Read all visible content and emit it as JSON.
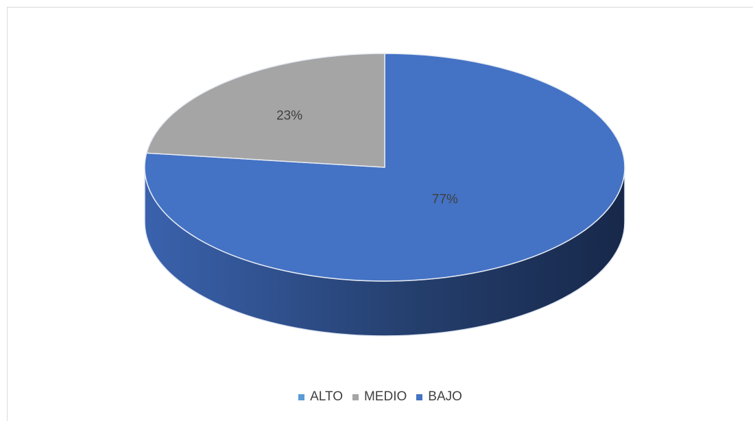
{
  "chart_data": {
    "type": "pie",
    "three_d": true,
    "categories": [
      "ALTO",
      "MEDIO",
      "BAJO"
    ],
    "values": [
      77,
      23,
      0
    ],
    "data_labels": [
      "77%",
      "23%",
      ""
    ],
    "colors": [
      "#4472c4",
      "#a5a5a5",
      "#3c64ad"
    ],
    "legend_colors": [
      "#5b9bd5",
      "#a5a5a5",
      "#4472c4"
    ],
    "legend_position": "bottom",
    "title": ""
  }
}
